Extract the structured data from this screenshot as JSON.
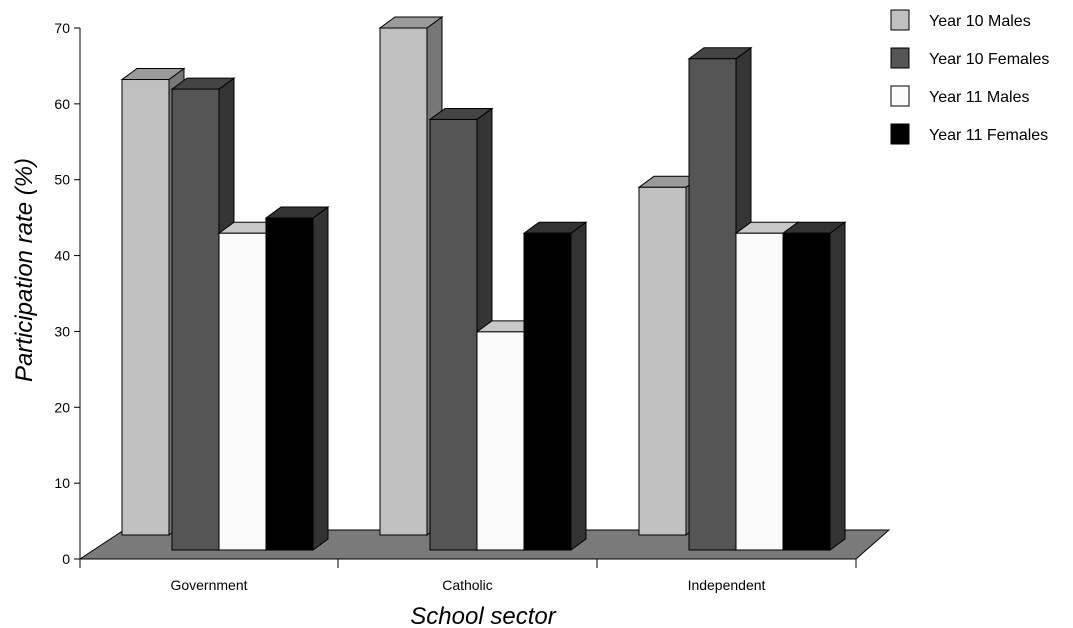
{
  "chart_data": {
    "type": "bar",
    "title": "",
    "xlabel": "School sector",
    "ylabel": "Participation rate (%)",
    "categories": [
      "Government",
      "Catholic",
      "Independent"
    ],
    "series": [
      {
        "name": "Year 10 Males",
        "values": [
          64,
          70,
          49
        ],
        "color": "#c0c0c0"
      },
      {
        "name": "Year 10 Females",
        "values": [
          63,
          59,
          67
        ],
        "color": "#555555"
      },
      {
        "name": "Year 11 Males",
        "values": [
          44,
          31,
          44
        ],
        "color": "#fafafa"
      },
      {
        "name": "Year 11 Females",
        "values": [
          46,
          44,
          44
        ],
        "color": "#000000"
      }
    ],
    "ylim": [
      0,
      70
    ],
    "yticks": [
      0,
      10,
      20,
      30,
      40,
      50,
      60,
      70
    ],
    "grid": false,
    "three_d": true,
    "legend_position": "top-right"
  }
}
